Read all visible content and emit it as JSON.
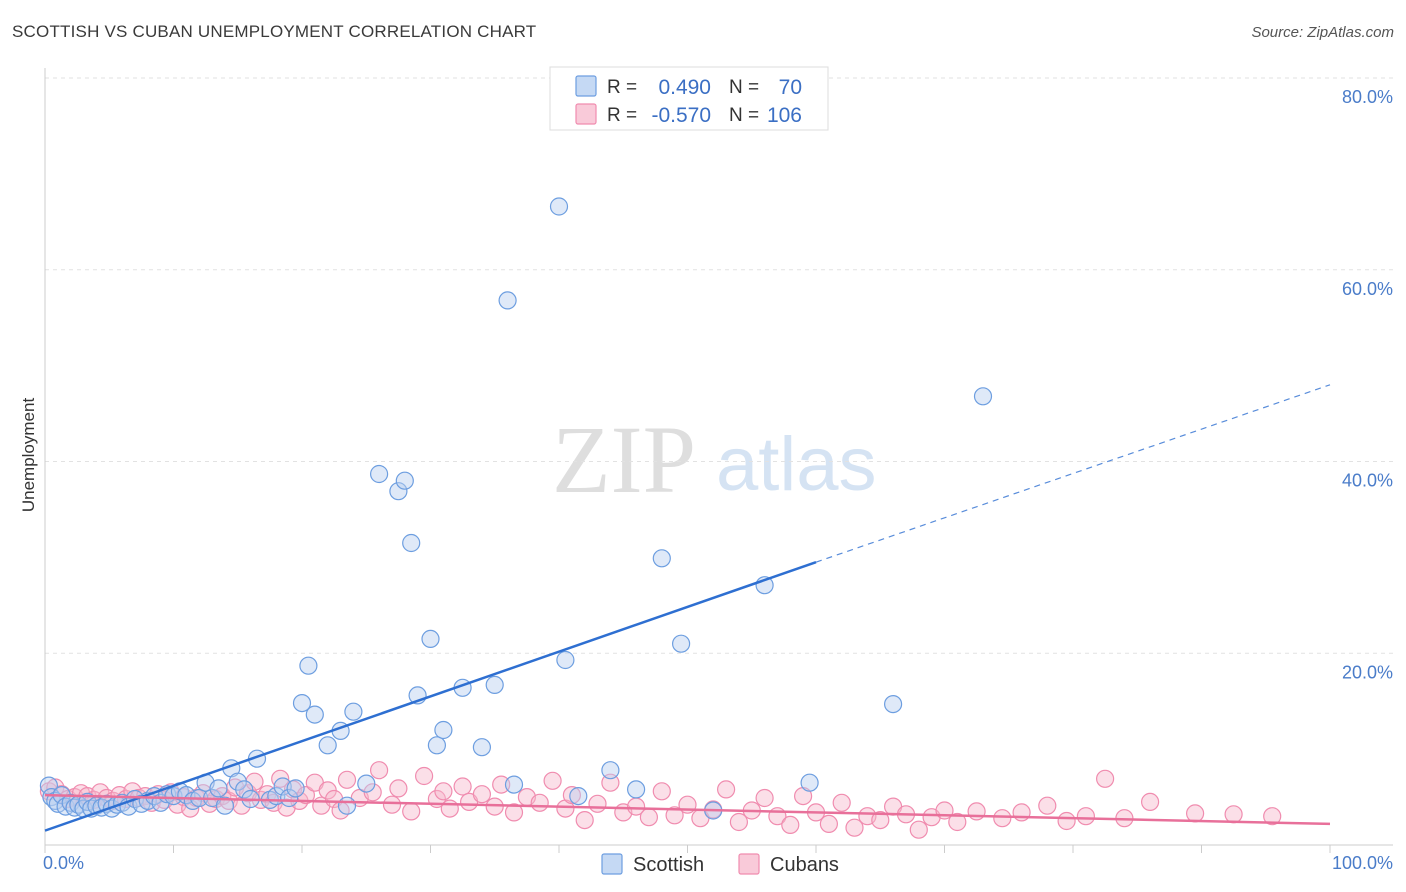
{
  "title": "SCOTTISH VS CUBAN UNEMPLOYMENT CORRELATION CHART",
  "source": "Source: ZipAtlas.com",
  "watermark": {
    "zip": "ZIP",
    "atlas": "atlas"
  },
  "chart_data": {
    "type": "scatter",
    "ylabel": "Unemployment",
    "xlim": [
      0,
      100
    ],
    "ylim": [
      0,
      80
    ],
    "x_ticks": [
      "0.0%",
      "100.0%"
    ],
    "y_ticks": [
      {
        "value": 80,
        "label": "80.0%"
      },
      {
        "value": 60,
        "label": "60.0%"
      },
      {
        "value": 40,
        "label": "40.0%"
      },
      {
        "value": 20,
        "label": "20.0%"
      }
    ],
    "grid": true,
    "legend_position": "top-center",
    "stats": [
      {
        "r_label": "R =",
        "r_value": "0.490",
        "n_label": "N =",
        "n_value": "70"
      },
      {
        "r_label": "R =",
        "r_value": "-0.570",
        "n_label": "N =",
        "n_value": "106"
      }
    ],
    "colors": {
      "scottish": "#6d9ee0",
      "cubans": "#f08caf",
      "scottish_line": "#2e6fd1",
      "cubans_line": "#e8709a"
    },
    "series": [
      {
        "name": "Scottish",
        "trend": {
          "x0": 0,
          "y0": 1.5,
          "x1": 60,
          "y1": 29.5,
          "dash_to_x": 100,
          "dash_to_y": 48
        },
        "points": [
          [
            0.3,
            6.2
          ],
          [
            0.5,
            5.0
          ],
          [
            0.8,
            4.6
          ],
          [
            1.0,
            4.3
          ],
          [
            1.3,
            5.2
          ],
          [
            1.6,
            4.0
          ],
          [
            2.0,
            4.4
          ],
          [
            2.3,
            3.9
          ],
          [
            2.6,
            4.2
          ],
          [
            3.0,
            3.8
          ],
          [
            3.3,
            4.5
          ],
          [
            3.6,
            3.8
          ],
          [
            4.0,
            4.1
          ],
          [
            4.4,
            3.9
          ],
          [
            4.8,
            4.3
          ],
          [
            5.2,
            3.8
          ],
          [
            5.6,
            4.2
          ],
          [
            6.0,
            4.4
          ],
          [
            6.5,
            4.0
          ],
          [
            7.0,
            4.8
          ],
          [
            7.5,
            4.3
          ],
          [
            8.0,
            4.6
          ],
          [
            8.5,
            5.1
          ],
          [
            9.0,
            4.4
          ],
          [
            9.5,
            5.3
          ],
          [
            10.0,
            5.1
          ],
          [
            10.5,
            5.6
          ],
          [
            11.0,
            5.2
          ],
          [
            11.5,
            4.6
          ],
          [
            12.0,
            4.9
          ],
          [
            12.5,
            6.5
          ],
          [
            13.0,
            4.9
          ],
          [
            13.5,
            5.9
          ],
          [
            14.0,
            4.1
          ],
          [
            14.5,
            8.0
          ],
          [
            15.0,
            6.6
          ],
          [
            15.5,
            5.8
          ],
          [
            16.0,
            4.8
          ],
          [
            16.5,
            9.0
          ],
          [
            17.5,
            4.7
          ],
          [
            18.0,
            5.1
          ],
          [
            18.5,
            6.1
          ],
          [
            19.0,
            4.9
          ],
          [
            19.5,
            5.9
          ],
          [
            20.5,
            18.7
          ],
          [
            20.0,
            14.8
          ],
          [
            21.0,
            13.6
          ],
          [
            22.0,
            10.4
          ],
          [
            23.0,
            11.9
          ],
          [
            23.5,
            4.1
          ],
          [
            24.0,
            13.9
          ],
          [
            25.0,
            6.4
          ],
          [
            26.0,
            38.7
          ],
          [
            27.5,
            36.9
          ],
          [
            28.0,
            38.0
          ],
          [
            28.5,
            31.5
          ],
          [
            29.0,
            15.6
          ],
          [
            30.0,
            21.5
          ],
          [
            30.5,
            10.4
          ],
          [
            31.0,
            12.0
          ],
          [
            32.5,
            16.4
          ],
          [
            34.0,
            10.2
          ],
          [
            35.0,
            16.7
          ],
          [
            36.0,
            56.8
          ],
          [
            36.5,
            6.3
          ],
          [
            40.0,
            66.6
          ],
          [
            40.5,
            19.3
          ],
          [
            41.5,
            5.1
          ],
          [
            44.0,
            7.8
          ],
          [
            46.0,
            5.8
          ],
          [
            48.0,
            29.9
          ],
          [
            49.5,
            21.0
          ],
          [
            52.0,
            3.6
          ],
          [
            56.0,
            27.1
          ],
          [
            59.5,
            6.5
          ],
          [
            66.0,
            14.7
          ],
          [
            73.0,
            46.8
          ]
        ]
      },
      {
        "name": "Cubans",
        "trend": {
          "x0": 0,
          "y0": 5.2,
          "x1": 100,
          "y1": 2.2
        },
        "points": [
          [
            0.3,
            5.6
          ],
          [
            0.8,
            6.0
          ],
          [
            1.3,
            5.3
          ],
          [
            1.8,
            4.8
          ],
          [
            2.3,
            5.0
          ],
          [
            2.8,
            5.4
          ],
          [
            3.3,
            5.1
          ],
          [
            3.8,
            4.7
          ],
          [
            4.3,
            5.5
          ],
          [
            4.8,
            4.9
          ],
          [
            5.3,
            4.6
          ],
          [
            5.8,
            5.2
          ],
          [
            6.3,
            4.8
          ],
          [
            6.8,
            5.6
          ],
          [
            7.3,
            4.9
          ],
          [
            7.8,
            5.1
          ],
          [
            8.3,
            4.4
          ],
          [
            8.8,
            5.3
          ],
          [
            9.3,
            4.7
          ],
          [
            9.8,
            5.5
          ],
          [
            10.3,
            4.2
          ],
          [
            10.8,
            5.0
          ],
          [
            11.3,
            3.8
          ],
          [
            11.8,
            4.9
          ],
          [
            12.3,
            5.4
          ],
          [
            12.8,
            4.3
          ],
          [
            13.3,
            4.8
          ],
          [
            13.8,
            5.1
          ],
          [
            14.3,
            4.6
          ],
          [
            14.8,
            6.0
          ],
          [
            15.3,
            4.1
          ],
          [
            15.8,
            5.4
          ],
          [
            16.3,
            6.6
          ],
          [
            16.8,
            4.7
          ],
          [
            17.3,
            5.3
          ],
          [
            17.8,
            4.4
          ],
          [
            18.3,
            6.9
          ],
          [
            18.8,
            3.9
          ],
          [
            19.3,
            5.8
          ],
          [
            19.8,
            4.6
          ],
          [
            20.3,
            5.2
          ],
          [
            21.0,
            6.5
          ],
          [
            21.5,
            4.1
          ],
          [
            22.0,
            5.7
          ],
          [
            22.5,
            4.8
          ],
          [
            23.0,
            3.6
          ],
          [
            23.5,
            6.8
          ],
          [
            24.5,
            4.9
          ],
          [
            25.5,
            5.5
          ],
          [
            26.0,
            7.8
          ],
          [
            27.0,
            4.2
          ],
          [
            27.5,
            5.9
          ],
          [
            28.5,
            3.5
          ],
          [
            29.5,
            7.2
          ],
          [
            30.5,
            4.8
          ],
          [
            31.0,
            5.6
          ],
          [
            31.5,
            3.8
          ],
          [
            32.5,
            6.1
          ],
          [
            33.0,
            4.5
          ],
          [
            34.0,
            5.3
          ],
          [
            35.0,
            4.0
          ],
          [
            35.5,
            6.3
          ],
          [
            36.5,
            3.4
          ],
          [
            37.5,
            5.0
          ],
          [
            38.5,
            4.4
          ],
          [
            39.5,
            6.7
          ],
          [
            40.5,
            3.8
          ],
          [
            41.0,
            5.2
          ],
          [
            42.0,
            2.6
          ],
          [
            43.0,
            4.3
          ],
          [
            44.0,
            6.5
          ],
          [
            45.0,
            3.4
          ],
          [
            46.0,
            4.0
          ],
          [
            47.0,
            2.9
          ],
          [
            48.0,
            5.6
          ],
          [
            49.0,
            3.1
          ],
          [
            50.0,
            4.2
          ],
          [
            51.0,
            2.8
          ],
          [
            52.0,
            3.7
          ],
          [
            53.0,
            5.8
          ],
          [
            54.0,
            2.4
          ],
          [
            55.0,
            3.6
          ],
          [
            56.0,
            4.9
          ],
          [
            57.0,
            3.0
          ],
          [
            58.0,
            2.1
          ],
          [
            59.0,
            5.1
          ],
          [
            60.0,
            3.4
          ],
          [
            61.0,
            2.2
          ],
          [
            62.0,
            4.4
          ],
          [
            63.0,
            1.8
          ],
          [
            64.0,
            3.0
          ],
          [
            65.0,
            2.6
          ],
          [
            66.0,
            4.0
          ],
          [
            67.0,
            3.2
          ],
          [
            68.0,
            1.6
          ],
          [
            69.0,
            2.9
          ],
          [
            70.0,
            3.6
          ],
          [
            71.0,
            2.4
          ],
          [
            72.5,
            3.5
          ],
          [
            74.5,
            2.8
          ],
          [
            76.0,
            3.4
          ],
          [
            78.0,
            4.1
          ],
          [
            79.5,
            2.5
          ],
          [
            81.0,
            3.0
          ],
          [
            82.5,
            6.9
          ],
          [
            84.0,
            2.8
          ],
          [
            86.0,
            4.5
          ],
          [
            89.5,
            3.3
          ],
          [
            92.5,
            3.2
          ],
          [
            95.5,
            3.0
          ]
        ]
      }
    ]
  }
}
